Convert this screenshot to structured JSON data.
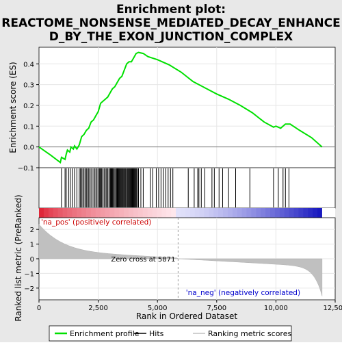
{
  "chart_data": {
    "type": "line",
    "title": "Enrichment plot:\nREACTOME_NONSENSE_MEDIATED_DECAY_ENHANCE\nD_BY_THE_EXON_JUNCTION_COMPLEX",
    "title_lines": [
      "Enrichment plot:",
      "REACTOME_NONSENSE_MEDIATED_DECAY_ENHANCE",
      "D_BY_THE_EXON_JUNCTION_COMPLEX"
    ],
    "xlabel": "Rank in Ordered Dataset",
    "ylabel_top": "Enrichment score (ES)",
    "ylabel_bottom": "Ranked list metric (PreRanked)",
    "xlim": [
      0,
      12500
    ],
    "x_ticks": [
      0,
      2500,
      5000,
      7500,
      10000,
      12500
    ],
    "x_tick_labels": [
      "0",
      "2,500",
      "5,000",
      "7,500",
      "10,000",
      "12,500"
    ],
    "es_ylim": [
      -0.1,
      0.48
    ],
    "es_ticks": [
      -0.1,
      0.0,
      0.1,
      0.2,
      0.3,
      0.4
    ],
    "es_tick_labels": [
      "−0.1",
      "0.0",
      "0.1",
      "0.2",
      "0.3",
      "0.4"
    ],
    "metric_ylim": [
      -2.8,
      2.8
    ],
    "metric_ticks": [
      -2,
      -1,
      0,
      1,
      2
    ],
    "metric_tick_labels": [
      "−2",
      "−1",
      "0",
      "1",
      "2"
    ],
    "n_genes": 11950,
    "zero_cross": 5871,
    "zero_cross_label": "Zero cross at 5871",
    "pos_label": "'na_pos' (positively correlated)",
    "neg_label": "'na_neg' (negatively correlated)",
    "colors": {
      "es_line": "#00e000",
      "hits": "#000000",
      "metric_fill": "#c0c0c0",
      "grid": "#ffffff",
      "pos_label": "#cc0000",
      "neg_label": "#0000cc",
      "title_bg": "#e8e8e8"
    },
    "legend": [
      {
        "name": "Enrichment profile",
        "style": "line",
        "color": "#00e000"
      },
      {
        "name": "Hits",
        "style": "line",
        "color": "#000000"
      },
      {
        "name": "Ranking metric scores",
        "style": "line",
        "color": "#c0c0c0"
      }
    ],
    "es_profile": [
      [
        0,
        0.0
      ],
      [
        500,
        -0.04
      ],
      [
        900,
        -0.075
      ],
      [
        950,
        -0.05
      ],
      [
        1100,
        -0.06
      ],
      [
        1150,
        -0.035
      ],
      [
        1200,
        -0.015
      ],
      [
        1300,
        -0.025
      ],
      [
        1350,
        0.0
      ],
      [
        1450,
        -0.01
      ],
      [
        1500,
        0.005
      ],
      [
        1600,
        -0.01
      ],
      [
        1700,
        0.01
      ],
      [
        1800,
        0.05
      ],
      [
        1900,
        0.06
      ],
      [
        2000,
        0.08
      ],
      [
        2100,
        0.09
      ],
      [
        2200,
        0.12
      ],
      [
        2300,
        0.13
      ],
      [
        2400,
        0.15
      ],
      [
        2500,
        0.17
      ],
      [
        2600,
        0.21
      ],
      [
        2700,
        0.22
      ],
      [
        2800,
        0.23
      ],
      [
        2900,
        0.24
      ],
      [
        3000,
        0.26
      ],
      [
        3100,
        0.28
      ],
      [
        3200,
        0.29
      ],
      [
        3300,
        0.31
      ],
      [
        3400,
        0.33
      ],
      [
        3500,
        0.34
      ],
      [
        3600,
        0.37
      ],
      [
        3700,
        0.4
      ],
      [
        3800,
        0.41
      ],
      [
        3900,
        0.41
      ],
      [
        4000,
        0.43
      ],
      [
        4100,
        0.45
      ],
      [
        4200,
        0.455
      ],
      [
        4400,
        0.45
      ],
      [
        4600,
        0.435
      ],
      [
        5000,
        0.42
      ],
      [
        5500,
        0.395
      ],
      [
        6000,
        0.36
      ],
      [
        6500,
        0.315
      ],
      [
        7000,
        0.285
      ],
      [
        7500,
        0.255
      ],
      [
        8000,
        0.23
      ],
      [
        8500,
        0.2
      ],
      [
        9000,
        0.165
      ],
      [
        9500,
        0.12
      ],
      [
        9900,
        0.095
      ],
      [
        10000,
        0.1
      ],
      [
        10200,
        0.09
      ],
      [
        10400,
        0.11
      ],
      [
        10600,
        0.11
      ],
      [
        11000,
        0.08
      ],
      [
        11500,
        0.045
      ],
      [
        11950,
        0.0
      ]
    ],
    "hits": [
      950,
      1100,
      1150,
      1250,
      1320,
      1400,
      1500,
      1600,
      1700,
      1750,
      1800,
      1850,
      1900,
      1950,
      2000,
      2050,
      2100,
      2150,
      2200,
      2280,
      2350,
      2400,
      2450,
      2500,
      2550,
      2580,
      2620,
      2650,
      2700,
      2750,
      2800,
      2850,
      2900,
      2950,
      3000,
      3030,
      3060,
      3090,
      3120,
      3150,
      3200,
      3240,
      3280,
      3300,
      3320,
      3350,
      3380,
      3410,
      3440,
      3470,
      3500,
      3530,
      3560,
      3600,
      3630,
      3660,
      3700,
      3730,
      3760,
      3790,
      3820,
      3850,
      3880,
      3910,
      3940,
      3970,
      4000,
      4030,
      4060,
      4090,
      4120,
      4150,
      4200,
      4300,
      4400,
      4700,
      4800,
      4950,
      5050,
      5150,
      5250,
      5350,
      5450,
      5550,
      5650,
      6300,
      6550,
      6700,
      6750,
      6850,
      7000,
      7300,
      7400,
      7600,
      7750,
      8000,
      8300,
      8900,
      9900,
      10100,
      10300,
      10400,
      10550
    ]
  }
}
